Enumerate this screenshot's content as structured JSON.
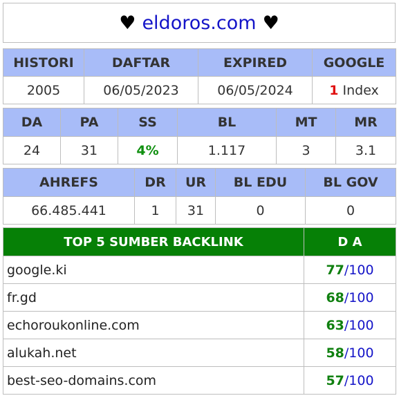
{
  "title": {
    "left_heart": "♥",
    "domain": "eldoros.com",
    "right_heart": "♥"
  },
  "row1": {
    "headers": [
      "HISTORI",
      "DAFTAR",
      "EXPIRED",
      "GOOGLE"
    ],
    "histori": "2005",
    "daftar": "06/05/2023",
    "expired": "06/05/2024",
    "google_count": "1",
    "google_label": "Index"
  },
  "row2": {
    "headers": [
      "DA",
      "PA",
      "SS",
      "BL",
      "MT",
      "MR"
    ],
    "values": [
      "24",
      "31",
      "4%",
      "1.117",
      "3",
      "3.1"
    ]
  },
  "row3": {
    "headers": [
      "AHREFS",
      "DR",
      "UR",
      "BL EDU",
      "BL GOV"
    ],
    "values": [
      "66.485.441",
      "1",
      "31",
      "0",
      "0"
    ]
  },
  "backlinks": {
    "header_source": "TOP 5 SUMBER BACKLINK",
    "header_da": "D A",
    "items": [
      {
        "source": "google.ki",
        "da": "77",
        "max": "100"
      },
      {
        "source": "fr.gd",
        "da": "68",
        "max": "100"
      },
      {
        "source": "echoroukonline.com",
        "da": "63",
        "max": "100"
      },
      {
        "source": "alukah.net",
        "da": "58",
        "max": "100"
      },
      {
        "source": "best-seo-domains.com",
        "da": "57",
        "max": "100"
      }
    ]
  },
  "colors": {
    "header_blue": "#a8bcf8",
    "header_green": "#068006",
    "domain_blue": "#1414c8",
    "index_red": "#e01010",
    "value_green": "#109010"
  }
}
